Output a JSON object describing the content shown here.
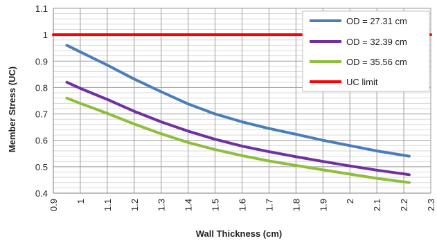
{
  "chart_data": {
    "type": "line",
    "xlabel": "Wall Thickness (cm)",
    "ylabel": "Member Stress (UC)",
    "xlim": [
      0.9,
      2.3
    ],
    "ylim": [
      0.4,
      1.1
    ],
    "x_ticks": [
      "0.9",
      "1",
      "1.1",
      "1.2",
      "1.3",
      "1.4",
      "1.5",
      "1.6",
      "1.7",
      "1.8",
      "1.9",
      "2",
      "2.1",
      "2.2",
      "2.3"
    ],
    "y_ticks": [
      "0.4",
      "0.5",
      "0.6",
      "0.7",
      "0.8",
      "0.9",
      "1",
      "1.1"
    ],
    "grid": true,
    "legend_position": "top-right",
    "series": [
      {
        "name": "OD = 27.31 cm",
        "color": "#4a7ebb",
        "x": [
          0.95,
          1.0,
          1.1,
          1.2,
          1.3,
          1.4,
          1.5,
          1.6,
          1.7,
          1.8,
          1.9,
          2.0,
          2.1,
          2.22
        ],
        "y": [
          0.96,
          0.935,
          0.885,
          0.832,
          0.784,
          0.738,
          0.7,
          0.67,
          0.645,
          0.623,
          0.6,
          0.58,
          0.56,
          0.54
        ]
      },
      {
        "name": "OD = 32.39 cm",
        "color": "#7030a0",
        "x": [
          0.95,
          1.0,
          1.1,
          1.2,
          1.3,
          1.4,
          1.5,
          1.6,
          1.7,
          1.8,
          1.9,
          2.0,
          2.1,
          2.22
        ],
        "y": [
          0.82,
          0.797,
          0.755,
          0.71,
          0.67,
          0.635,
          0.604,
          0.578,
          0.557,
          0.538,
          0.52,
          0.503,
          0.487,
          0.47
        ]
      },
      {
        "name": "OD = 35.56 cm",
        "color": "#8fbe3c",
        "x": [
          0.95,
          1.0,
          1.1,
          1.2,
          1.3,
          1.4,
          1.5,
          1.6,
          1.7,
          1.8,
          1.9,
          2.0,
          2.1,
          2.22
        ],
        "y": [
          0.76,
          0.74,
          0.702,
          0.662,
          0.625,
          0.592,
          0.565,
          0.542,
          0.522,
          0.505,
          0.488,
          0.472,
          0.456,
          0.44
        ]
      },
      {
        "name": "UC limit",
        "color": "#ff0000",
        "x": [
          0.9,
          2.3
        ],
        "y": [
          1.0,
          1.0
        ]
      }
    ]
  }
}
